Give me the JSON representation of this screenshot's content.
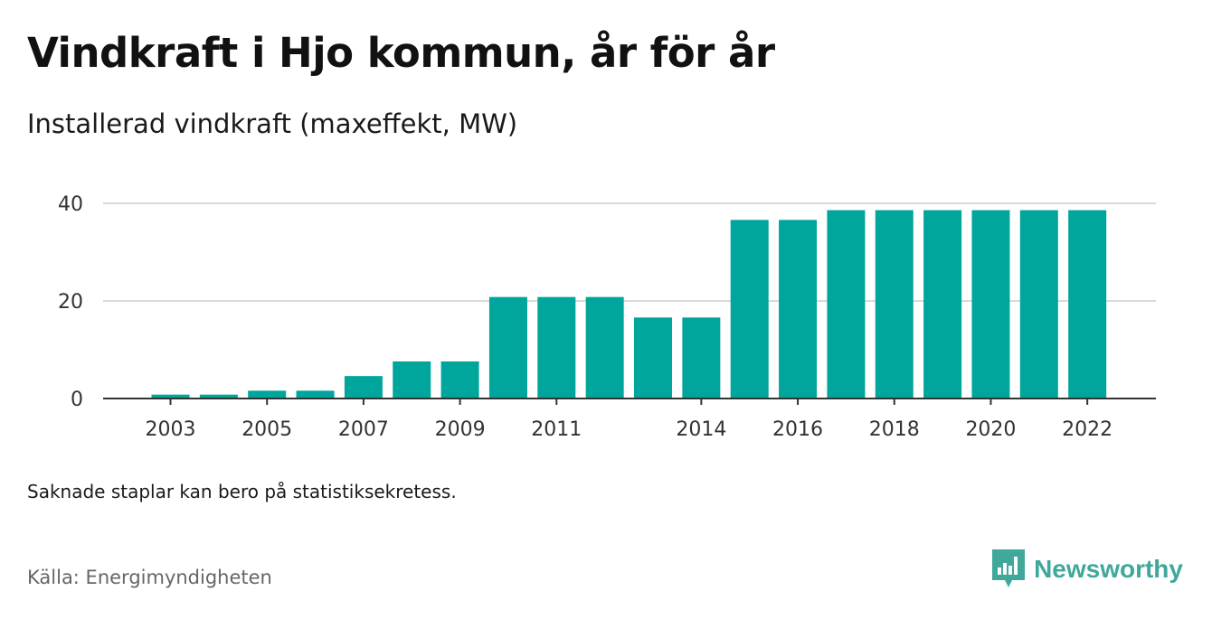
{
  "header": {
    "title": "Vindkraft i Hjo kommun, år för år",
    "subtitle": "Installerad vindkraft (maxeffekt, MW)"
  },
  "footer": {
    "note": "Saknade staplar kan bero på statistiksekretess.",
    "source": "Källa: Energimyndigheten",
    "brand": "Newsworthy"
  },
  "colors": {
    "bar": "#00a59b",
    "brand": "#3fa89a",
    "grid": "#d9d9d9",
    "axis": "#333333"
  },
  "chart_data": {
    "type": "bar",
    "title": "Vindkraft i Hjo kommun, år för år",
    "subtitle": "Installerad vindkraft (maxeffekt, MW)",
    "categories": [
      "2003",
      "2004",
      "2005",
      "2006",
      "2007",
      "2008",
      "2009",
      "2010",
      "2011",
      "2012",
      "2013",
      "2014",
      "2015",
      "2016",
      "2017",
      "2018",
      "2019",
      "2020",
      "2021",
      "2022"
    ],
    "values": [
      0.8,
      0.8,
      1.6,
      1.6,
      4.6,
      7.6,
      7.6,
      20.8,
      20.8,
      20.8,
      16.6,
      16.6,
      36.6,
      36.6,
      38.6,
      38.6,
      38.6,
      38.6,
      38.6,
      38.6
    ],
    "x_tick_labels": [
      "2003",
      "2005",
      "2007",
      "2009",
      "2011",
      "2014",
      "2016",
      "2018",
      "2020",
      "2022"
    ],
    "y_ticks": [
      0,
      20,
      40
    ],
    "ylim": [
      0,
      40
    ],
    "grid": true,
    "legend": "none"
  }
}
